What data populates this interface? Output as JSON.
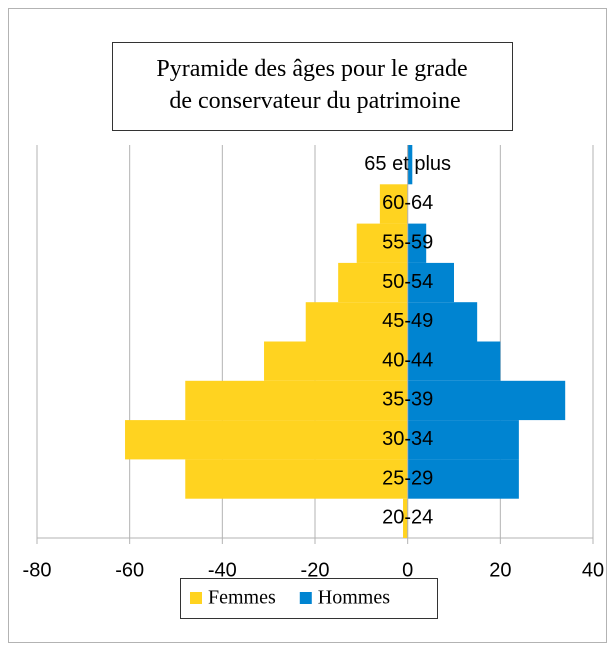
{
  "chart_data": {
    "type": "bar",
    "orientation": "horizontal",
    "title": "Pyramide des âges pour le grade\n de conservateur du patrimoine",
    "categories": [
      "20-24",
      "25-29",
      "30-34",
      "35-39",
      "40-44",
      "45-49",
      "50-54",
      "55-59",
      "60-64",
      "65 et plus"
    ],
    "series": [
      {
        "name": "Femmes",
        "color": "#ffd320",
        "values": [
          -1,
          -48,
          -61,
          -48,
          -31,
          -22,
          -15,
          -11,
          -6,
          0
        ]
      },
      {
        "name": "Hommes",
        "color": "#0084d1",
        "values": [
          0,
          24,
          24,
          34,
          20,
          15,
          10,
          4,
          0,
          1
        ]
      }
    ],
    "xlim": [
      -80,
      40
    ],
    "xticks": [
      -80,
      -60,
      -40,
      -20,
      0,
      20,
      40
    ],
    "grid": true,
    "legend": "bottom"
  }
}
